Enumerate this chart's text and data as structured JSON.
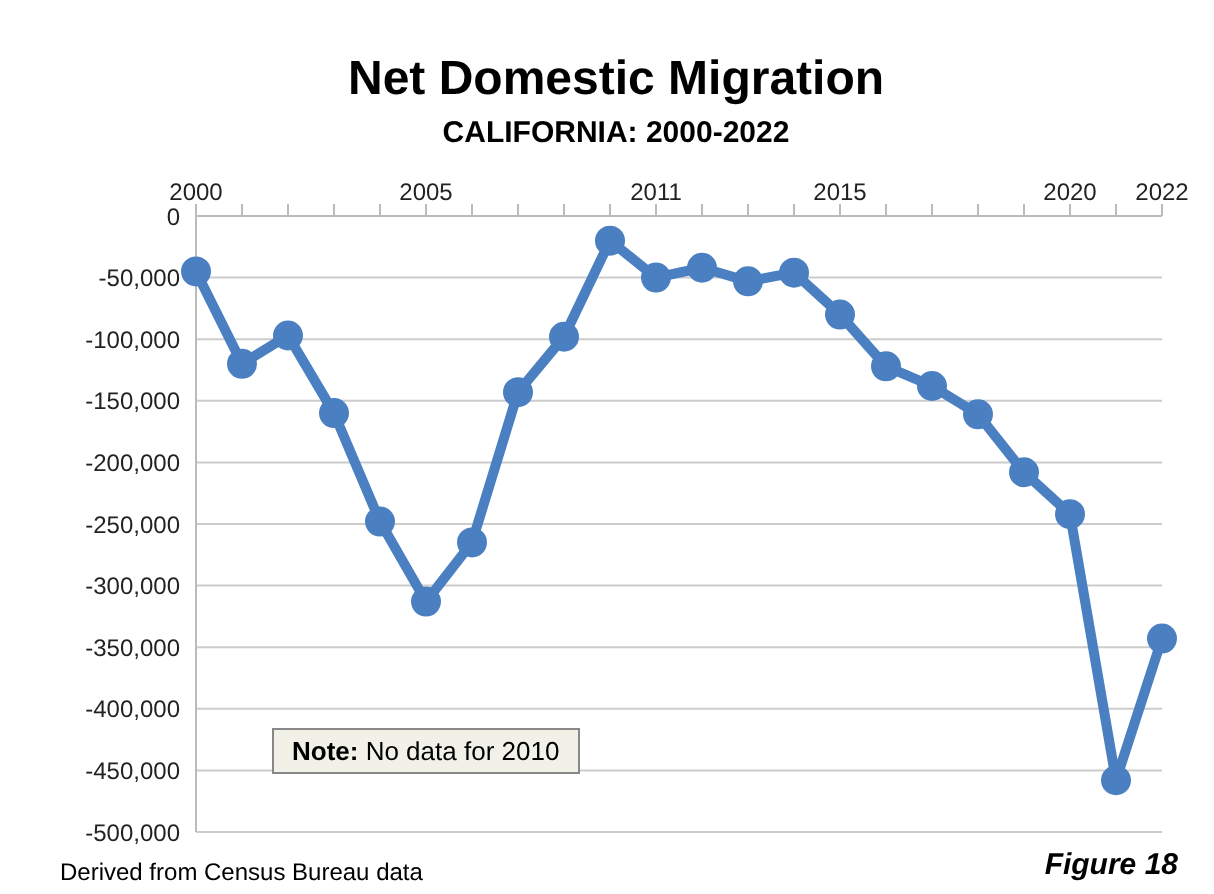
{
  "chart_data": {
    "type": "line",
    "title": "Net Domestic Migration",
    "subtitle": "CALIFORNIA: 2000-2022",
    "categories": [
      "2000",
      null,
      null,
      null,
      null,
      "2005",
      null,
      null,
      null,
      null,
      "2011",
      null,
      null,
      null,
      "2015",
      null,
      null,
      null,
      null,
      "2020",
      null,
      "2022"
    ],
    "series": [
      {
        "color": "#4a7fc1",
        "values": [
          -45000,
          -120000,
          -97000,
          -160000,
          -248000,
          -313000,
          -265000,
          -143000,
          -98000,
          -20000,
          -50000,
          -42000,
          -53000,
          -46000,
          -80000,
          -122000,
          -138000,
          -161000,
          -208000,
          -242000,
          -458000,
          -343000
        ]
      }
    ],
    "ylim": [
      -500000,
      0
    ],
    "yticks": [
      {
        "value": 0,
        "label": "0"
      },
      {
        "value": -50000,
        "label": "-50,000"
      },
      {
        "value": -100000,
        "label": "-100,000"
      },
      {
        "value": -150000,
        "label": "-150,000"
      },
      {
        "value": -200000,
        "label": "-200,000"
      },
      {
        "value": -250000,
        "label": "-250,000"
      },
      {
        "value": -300000,
        "label": "-300,000"
      },
      {
        "value": -350000,
        "label": "-350,000"
      },
      {
        "value": -400000,
        "label": "-400,000"
      },
      {
        "value": -450000,
        "label": "-450,000"
      },
      {
        "value": -500000,
        "label": "-500,000"
      }
    ],
    "grid": "y",
    "marker": "circle",
    "line_style": "solid",
    "annotations": [
      "Note: No data for 2010",
      "Derived from Census Bureau data",
      "Figure 18"
    ]
  }
}
